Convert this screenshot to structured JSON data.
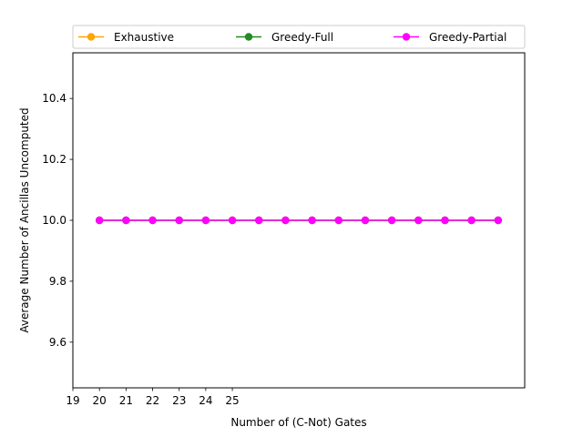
{
  "chart_data": {
    "type": "line",
    "title": "",
    "xlabel": "Number of (C-Not) Gates",
    "ylabel": "Average Number of Ancillas Uncomputed",
    "x_tick_labels": [
      "19",
      "20",
      "21",
      "22",
      "23",
      "24",
      "25"
    ],
    "y_tick_labels": [
      "9.6",
      "9.8",
      "10.0",
      "10.2",
      "10.4"
    ],
    "xlim": [
      0,
      17
    ],
    "ylim": [
      9.45,
      10.55
    ],
    "legend_position": "top, above plot, 3 columns",
    "grid": false,
    "x": [
      1,
      2,
      3,
      4,
      5,
      6,
      7,
      8,
      9,
      10,
      11,
      12,
      13,
      14,
      15,
      16
    ],
    "series": [
      {
        "name": "Exhaustive",
        "color": "#ffa500",
        "values": [
          10,
          10,
          10,
          10,
          10,
          10,
          10,
          10,
          10,
          10,
          10,
          10,
          10,
          10,
          10,
          10
        ]
      },
      {
        "name": "Greedy-Full",
        "color": "#228b22",
        "values": [
          10,
          10,
          10,
          10,
          10,
          10,
          10,
          10,
          10,
          10,
          10,
          10,
          10,
          10,
          10,
          10
        ]
      },
      {
        "name": "Greedy-Partial",
        "color": "#ff00ff",
        "values": [
          10,
          10,
          10,
          10,
          10,
          10,
          10,
          10,
          10,
          10,
          10,
          10,
          10,
          10,
          10,
          10
        ]
      }
    ]
  }
}
